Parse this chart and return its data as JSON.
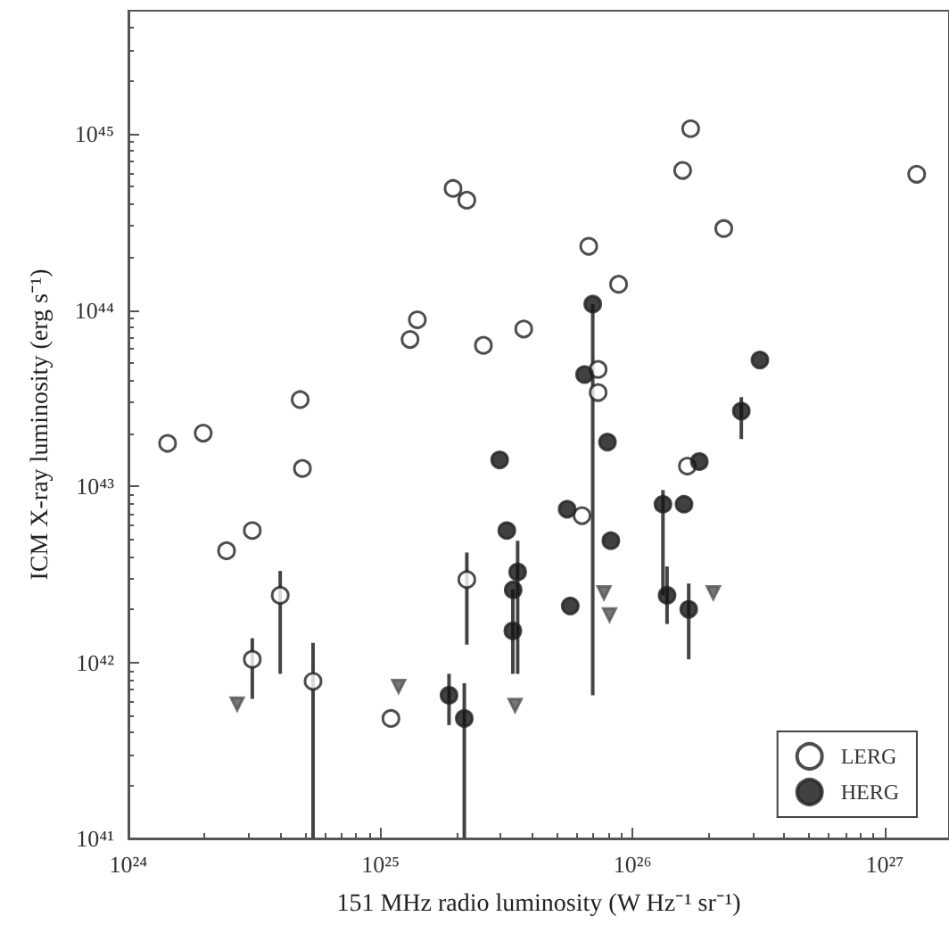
{
  "chart_data": {
    "type": "scatter",
    "xlabel": "151 MHz radio luminosity (W Hz⁻¹ sr⁻¹)",
    "ylabel": "ICM X-ray luminosity (erg s⁻¹)",
    "log": "xy",
    "xlim": [
      1e+24,
      1.8e+27
    ],
    "ylim": [
      1e+41,
      5e+45
    ],
    "xticks": [
      {
        "value": 1e+24,
        "label": "10²⁴"
      },
      {
        "value": 1e+25,
        "label": "10²⁵"
      },
      {
        "value": 1e+26,
        "label": "10²⁶"
      },
      {
        "value": 1e+27,
        "label": "10²⁷"
      }
    ],
    "yticks": [
      {
        "value": 1e+41,
        "label": "10⁴¹"
      },
      {
        "value": 1e+42,
        "label": "10⁴²"
      },
      {
        "value": 1e+43,
        "label": "10⁴³"
      },
      {
        "value": 1e+44,
        "label": "10⁴⁴"
      },
      {
        "value": 1e+45,
        "label": "10⁴⁵"
      }
    ],
    "legend": "bottom right",
    "marker": "circle",
    "series": [
      {
        "name": "LERG",
        "color": "#ffffff",
        "x": [
          1.43e+24,
          1.98e+24,
          4.8e+24,
          4.9e+24,
          2.45e+24,
          3.1e+24,
          4e+24,
          3.1e+24,
          5.4e+24,
          1.1e+25,
          2.2e+25,
          1.31e+25,
          1.4e+25,
          1.94e+25,
          2.2e+25,
          2.56e+25,
          3.7e+25,
          6.7e+25,
          8.8e+25,
          7.3e+25,
          7.3e+25,
          1.58e+26,
          1.7e+26,
          2.3e+26,
          1.34e+27,
          6.3e+25,
          1.65e+26
        ],
        "values": [
          1.75e+43,
          2e+43,
          3.1e+43,
          1.26e+43,
          4.3e+42,
          5.6e+42,
          2.4e+42,
          1.04e+42,
          7.8e+41,
          4.8e+41,
          2.95e+42,
          6.8e+43,
          8.8e+43,
          4.9e+44,
          4.2e+44,
          6.3e+43,
          7.8e+43,
          2.3e+44,
          1.4e+44,
          4.6e+43,
          3.4e+43,
          6.2e+44,
          1.07e+45,
          2.9e+44,
          5.9e+44,
          6.8e+42,
          1.3e+43
        ],
        "errors": [
          null,
          null,
          null,
          null,
          null,
          null,
          [
            8.6e+41,
            3.3e+42
          ],
          [
            6.2e+41,
            1.37e+42
          ],
          [
            1e+41,
            1.29e+42
          ],
          null,
          [
            1.26e+42,
            4.2e+42
          ],
          null,
          null,
          null,
          null,
          null,
          null,
          null,
          null,
          null,
          null,
          null,
          null,
          null,
          null,
          null,
          null
        ]
      },
      {
        "name": "HERG",
        "color": "#111111",
        "x": [
          2.97e+25,
          3.17e+25,
          3.5e+25,
          3.36e+25,
          3.35e+25,
          1.87e+25,
          2.15e+25,
          6.95e+25,
          6.45e+25,
          7.95e+25,
          3.2e+26,
          2.7e+26,
          1.84e+26,
          5.5e+25,
          8.2e+25,
          5.66e+25,
          1.32e+26,
          1.37e+26,
          1.6e+26,
          1.67e+26
        ],
        "values": [
          1.41e+43,
          5.6e+42,
          3.26e+42,
          2.58e+42,
          1.51e+42,
          6.5e+41,
          4.8e+41,
          1.08e+44,
          4.3e+43,
          1.78e+43,
          5.2e+43,
          2.67e+43,
          1.38e+43,
          7.4e+42,
          4.9e+42,
          2.09e+42,
          7.9e+42,
          2.4e+42,
          7.9e+42,
          2e+42
        ],
        "errors": [
          null,
          null,
          [
            8.6e+41,
            4.9e+42
          ],
          null,
          [
            8.6e+41,
            2.6e+42
          ],
          [
            4.4e+41,
            8.6e+41
          ],
          [
            1e+41,
            7.6e+41
          ],
          [
            6.5e+41,
            1.08e+44
          ],
          null,
          null,
          null,
          [
            1.85e+43,
            3.2e+43
          ],
          null,
          null,
          null,
          null,
          [
            2.4e+42,
            9.5e+42
          ],
          [
            1.65e+42,
            3.5e+42
          ],
          null,
          [
            1.04e+42,
            2.8e+42
          ]
        ]
      },
      {
        "color": "#555555",
        "marker": "triangle",
        "x": [
          2.7e+24,
          1.18e+25,
          3.42e+25,
          7.7e+25,
          8.1e+25,
          2.09e+26
        ],
        "values": [
          5.8e+41,
          7.3e+41,
          5.7e+41,
          2.48e+42,
          1.86e+42,
          2.48e+42
        ]
      }
    ]
  }
}
